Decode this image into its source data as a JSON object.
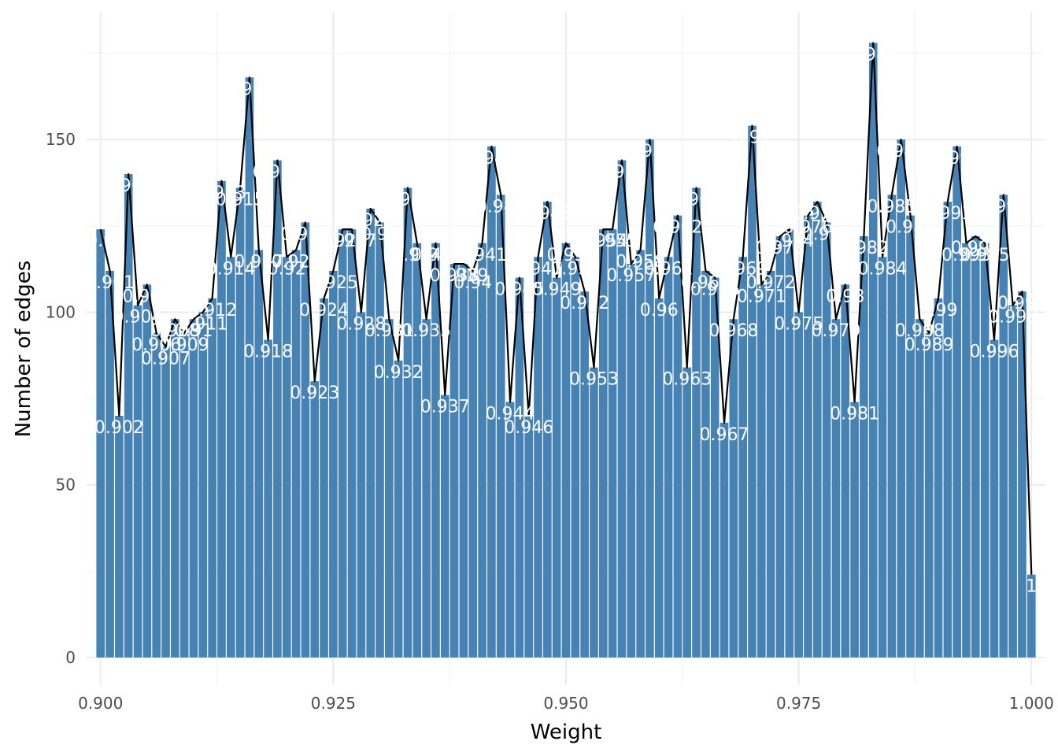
{
  "chart_data": {
    "type": "bar",
    "title": "",
    "xlabel": "Weight",
    "ylabel": "Number of edges",
    "xlim": [
      0.8985,
      1.0015
    ],
    "ylim": [
      -8,
      187
    ],
    "x_ticks": [
      0.9,
      0.925,
      0.95,
      0.975,
      1.0
    ],
    "x_tick_labels": [
      "0.900",
      "0.925",
      "0.950",
      "0.975",
      "1.000"
    ],
    "y_ticks": [
      0,
      50,
      100,
      150
    ],
    "y_tick_labels": [
      "0",
      "50",
      "100",
      "150"
    ],
    "grid": true,
    "bar_color": "#4682B4",
    "line_color": "#000000",
    "label_color": "#FFFFFF",
    "overlay": "line through bar tops",
    "x": [
      0.9,
      0.901,
      0.902,
      0.903,
      0.904,
      0.905,
      0.906,
      0.907,
      0.908,
      0.909,
      0.91,
      0.911,
      0.912,
      0.913,
      0.914,
      0.915,
      0.916,
      0.917,
      0.918,
      0.919,
      0.92,
      0.921,
      0.922,
      0.923,
      0.924,
      0.925,
      0.926,
      0.927,
      0.928,
      0.929,
      0.93,
      0.931,
      0.932,
      0.933,
      0.934,
      0.935,
      0.936,
      0.937,
      0.938,
      0.939,
      0.94,
      0.941,
      0.942,
      0.943,
      0.944,
      0.945,
      0.946,
      0.947,
      0.948,
      0.949,
      0.95,
      0.951,
      0.952,
      0.953,
      0.954,
      0.955,
      0.956,
      0.957,
      0.958,
      0.959,
      0.96,
      0.961,
      0.962,
      0.963,
      0.964,
      0.965,
      0.966,
      0.967,
      0.968,
      0.969,
      0.97,
      0.971,
      0.972,
      0.973,
      0.974,
      0.975,
      0.976,
      0.977,
      0.978,
      0.979,
      0.98,
      0.981,
      0.982,
      0.983,
      0.984,
      0.985,
      0.986,
      0.987,
      0.988,
      0.989,
      0.99,
      0.991,
      0.992,
      0.993,
      0.994,
      0.995,
      0.996,
      0.997,
      0.998,
      0.999,
      1.0
    ],
    "values": [
      124,
      112,
      70,
      140,
      102,
      108,
      94,
      90,
      98,
      94,
      98,
      100,
      104,
      138,
      116,
      136,
      168,
      118,
      92,
      144,
      116,
      118,
      126,
      80,
      104,
      112,
      124,
      124,
      100,
      130,
      126,
      98,
      86,
      136,
      120,
      98,
      120,
      76,
      114,
      114,
      112,
      120,
      148,
      134,
      74,
      110,
      70,
      116,
      132,
      110,
      120,
      116,
      106,
      84,
      124,
      124,
      144,
      114,
      118,
      150,
      104,
      116,
      128,
      84,
      136,
      112,
      110,
      68,
      98,
      116,
      154,
      108,
      112,
      122,
      124,
      100,
      128,
      132,
      126,
      98,
      108,
      74,
      122,
      178,
      116,
      134,
      150,
      128,
      98,
      94,
      104,
      132,
      148,
      120,
      122,
      120,
      92,
      134,
      102,
      106,
      24
    ],
    "labels": [
      "0.9",
      "0.901",
      "0.902",
      "0.903",
      "0.904",
      "0.905",
      "0.906",
      "0.907",
      "0.908",
      "0.909",
      "0.91",
      "0.911",
      "0.912",
      "0.913",
      "0.914",
      "0.915",
      "0.916",
      "0.917",
      "0.918",
      "0.919",
      "0.92",
      "0.921",
      "0.922",
      "0.923",
      "0.924",
      "0.925",
      "0.926",
      "0.927",
      "0.928",
      "0.929",
      "0.93",
      "0.931",
      "0.932",
      "0.933",
      "0.934",
      "0.935",
      "0.936",
      "0.937",
      "0.938",
      "0.939",
      "0.94",
      "0.941",
      "0.942",
      "0.943",
      "0.944",
      "0.945",
      "0.946",
      "0.947",
      "0.948",
      "0.949",
      "0.95",
      "0.951",
      "0.952",
      "0.953",
      "0.954",
      "0.955",
      "0.956",
      "0.957",
      "0.958",
      "0.959",
      "0.96",
      "0.961",
      "0.962",
      "0.963",
      "0.964",
      "0.965",
      "0.966",
      "0.967",
      "0.968",
      "0.969",
      "0.97",
      "0.971",
      "0.972",
      "0.973",
      "0.974",
      "0.975",
      "0.976",
      "0.977",
      "0.978",
      "0.979",
      "0.98",
      "0.981",
      "0.982",
      "0.983",
      "0.984",
      "0.985",
      "0.986",
      "0.987",
      "0.988",
      "0.989",
      "0.99",
      "0.991",
      "0.992",
      "0.993",
      "0.994",
      "0.995",
      "0.996",
      "0.997",
      "0.998",
      "0.999",
      "1"
    ]
  }
}
